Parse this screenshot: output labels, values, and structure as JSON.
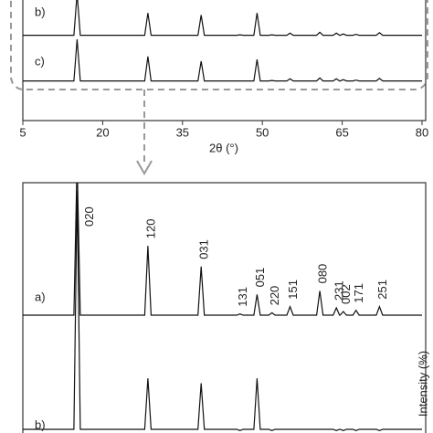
{
  "chart_data": [
    {
      "type": "line",
      "x_label": "2θ (°)",
      "x": [
        5,
        14.6,
        15.2,
        15.8,
        27.9,
        28.5,
        29.1,
        37.9,
        38.5,
        39.1,
        45.2,
        45.8,
        46.4,
        48.4,
        49,
        49.6,
        51.2,
        51.8,
        52.4,
        54.6,
        55.2,
        55.8,
        60.2,
        60.8,
        61.4,
        63.3,
        63.9,
        64.5,
        64.6,
        65.2,
        65.8,
        67,
        67.6,
        68.2,
        71.4,
        72,
        72.6,
        80
      ],
      "xlim": [
        5,
        80
      ],
      "xticks": [
        5,
        20,
        35,
        50,
        65,
        80
      ],
      "series": [
        {
          "name": "b)",
          "color": "#111111",
          "values": [
            3,
            3,
            100,
            3,
            3,
            55,
            3,
            3,
            50,
            3,
            3,
            4,
            3,
            3,
            55,
            3,
            3,
            4,
            3,
            3,
            8,
            3,
            3,
            10,
            3,
            3,
            8,
            3,
            3,
            6,
            3,
            3,
            5,
            3,
            3,
            9,
            3,
            3
          ]
        },
        {
          "name": "c)",
          "color": "#111111",
          "values": [
            3,
            3,
            100,
            3,
            3,
            60,
            3,
            3,
            49,
            3,
            3,
            3,
            3,
            3,
            53,
            3,
            3,
            4,
            3,
            3,
            8,
            3,
            3,
            10,
            3,
            3,
            8,
            3,
            3,
            6,
            3,
            3,
            5,
            3,
            3,
            9,
            3,
            3
          ]
        }
      ]
    },
    {
      "type": "line",
      "y_label": "Intensity (%)",
      "x": [
        5,
        14.6,
        15.2,
        15.8,
        27.9,
        28.5,
        29.1,
        37.9,
        38.5,
        39.1,
        45.2,
        45.8,
        46.4,
        48.4,
        49,
        49.6,
        51.2,
        51.8,
        52.4,
        54.6,
        55.2,
        55.8,
        60.2,
        60.8,
        61.4,
        63.3,
        63.9,
        64.5,
        64.6,
        65.2,
        65.8,
        67,
        67.6,
        68.2,
        71.4,
        72,
        72.6,
        80
      ],
      "xlim": [
        5,
        80
      ],
      "series": [
        {
          "name": "a)",
          "color": "#111111",
          "values": [
            3,
            3,
            130,
            3,
            3,
            60,
            3,
            3,
            43,
            3,
            3,
            4,
            3,
            3,
            20,
            3,
            3,
            5,
            3,
            3,
            10,
            3,
            3,
            23,
            3,
            3,
            9,
            3,
            3,
            6,
            3,
            3,
            7,
            3,
            3,
            10,
            3,
            3
          ]
        },
        {
          "name": "b)",
          "color": "#111111",
          "values": [
            3,
            3,
            200,
            3,
            3,
            45,
            3,
            3,
            41,
            3,
            3,
            2,
            3,
            3,
            45,
            3,
            3,
            2,
            3,
            3,
            3,
            3,
            3,
            3,
            3,
            3,
            2,
            3,
            3,
            2,
            3,
            3,
            2,
            3,
            3,
            2,
            3,
            3
          ]
        }
      ],
      "annotations": [
        {
          "text": "020",
          "x": 15.2
        },
        {
          "text": "120",
          "x": 28.5
        },
        {
          "text": "031",
          "x": 38.5
        },
        {
          "text": "131",
          "x": 45.8
        },
        {
          "text": "051",
          "x": 49
        },
        {
          "text": "220",
          "x": 51.8
        },
        {
          "text": "151",
          "x": 55.2
        },
        {
          "text": "080",
          "x": 60.8
        },
        {
          "text": "231",
          "x": 63.9
        },
        {
          "text": "002",
          "x": 65.2
        },
        {
          "text": "171",
          "x": 67.6
        },
        {
          "text": "251",
          "x": 72
        }
      ]
    }
  ]
}
